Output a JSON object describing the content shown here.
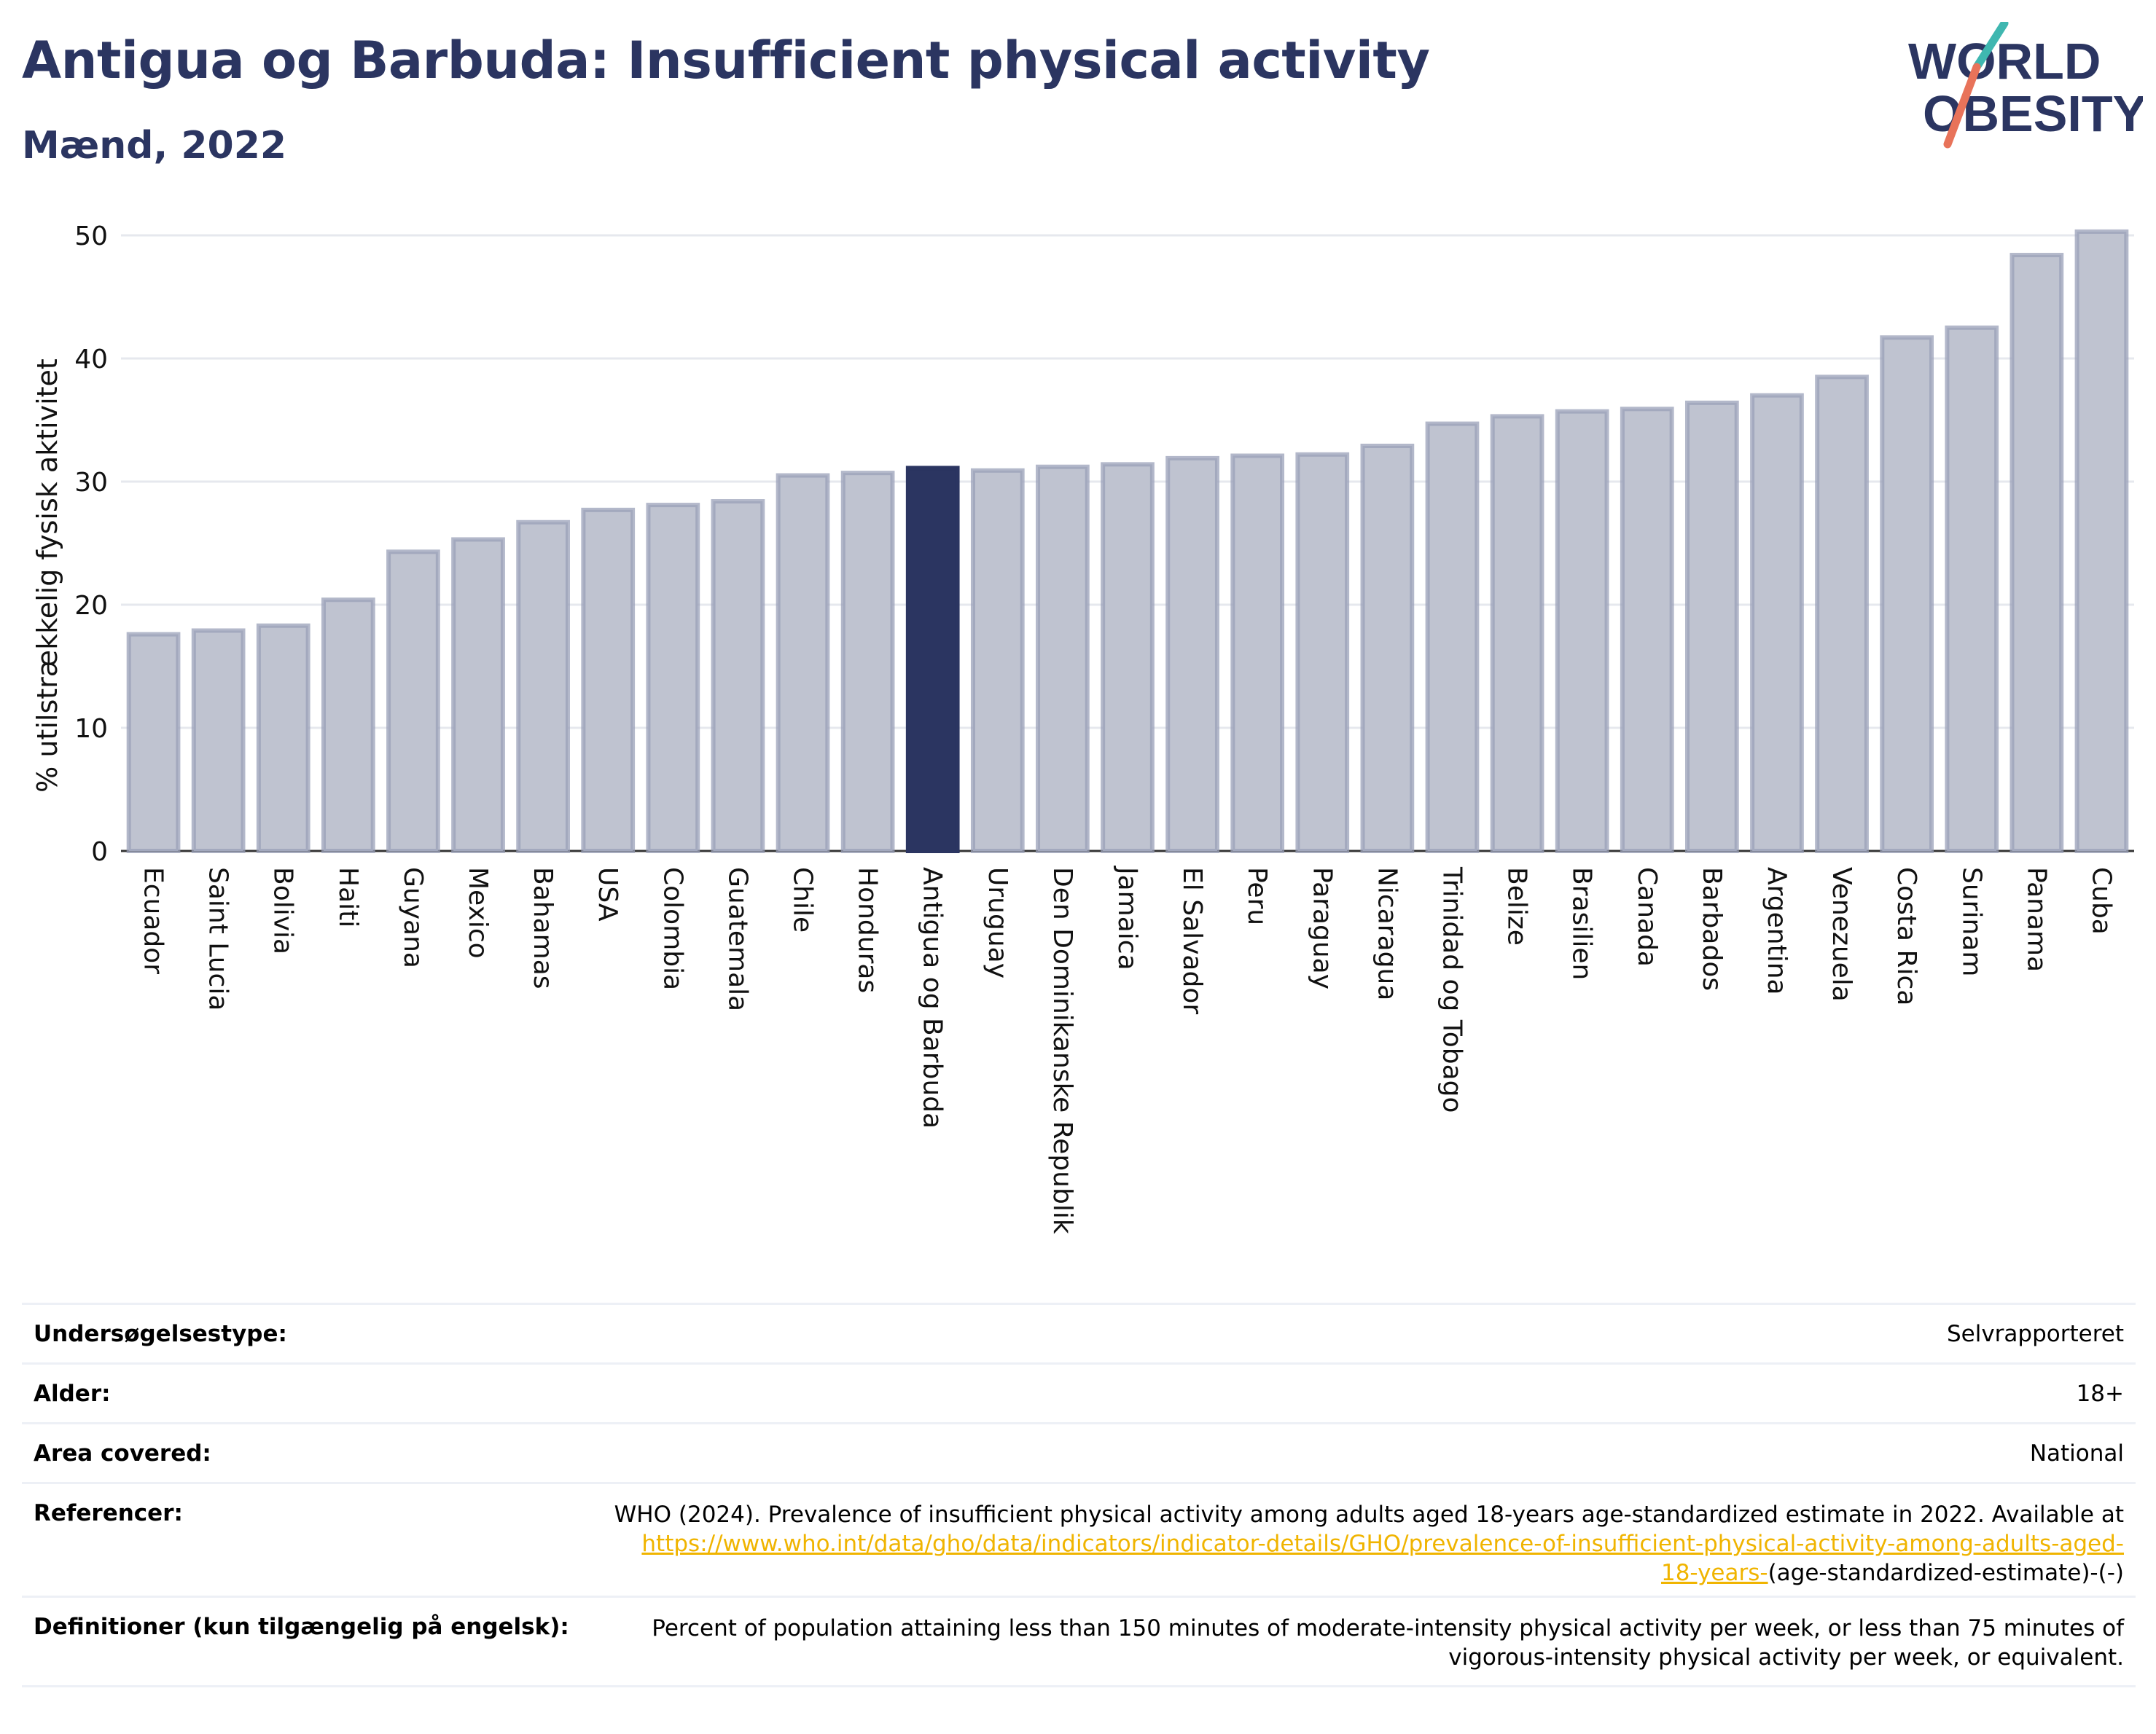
{
  "header": {
    "title": "Antigua og Barbuda: Insufficient physical activity",
    "subtitle": "Mænd, 2022"
  },
  "logo": {
    "line1": "WORLD",
    "line2": "OBESITY",
    "colors": {
      "text": "#2b3561",
      "slash_top": "#3fb7b0",
      "slash_bottom": "#e8735a"
    }
  },
  "chart_data": {
    "type": "bar",
    "ylabel": "% utilstrækkelig fysisk aktivitet",
    "ylim": [
      0,
      50
    ],
    "yticks": [
      0,
      10,
      20,
      30,
      40,
      50
    ],
    "grid": true,
    "highlight": "Antigua og Barbuda",
    "colors": {
      "bar": "#bfc3d0",
      "bar_edge": "#9aa0b8",
      "highlight": "#2b3561",
      "grid": "#e6e8ee"
    },
    "categories": [
      "Ecuador",
      "Saint Lucia",
      "Bolivia",
      "Haiti",
      "Guyana",
      "Mexico",
      "Bahamas",
      "USA",
      "Colombia",
      "Guatemala",
      "Chile",
      "Honduras",
      "Antigua og Barbuda",
      "Uruguay",
      "Den Dominikanske Republik",
      "Jamaica",
      "El Salvador",
      "Peru",
      "Paraguay",
      "Nicaragua",
      "Trinidad og Tobago",
      "Belize",
      "Brasilien",
      "Canada",
      "Barbados",
      "Argentina",
      "Venezuela",
      "Costa Rica",
      "Surinam",
      "Panama",
      "Cuba"
    ],
    "values": [
      17.6,
      17.9,
      18.3,
      20.4,
      24.3,
      25.3,
      26.7,
      27.7,
      28.1,
      28.4,
      30.5,
      30.7,
      31.1,
      30.9,
      31.2,
      31.4,
      31.9,
      32.1,
      32.2,
      32.9,
      34.7,
      35.3,
      35.7,
      35.9,
      36.4,
      37.0,
      38.5,
      41.7,
      42.5,
      48.4,
      50.3
    ]
  },
  "info": {
    "survey_type": {
      "label": "Undersøgelsestype:",
      "value": "Selvrapporteret"
    },
    "age": {
      "label": "Alder:",
      "value": "18+"
    },
    "area": {
      "label": "Area covered:",
      "value": "National"
    },
    "references": {
      "label": "Referencer:",
      "text": "WHO (2024). Prevalence of insufficient physical activity among adults aged 18-years age-standardized estimate in 2022. Available at",
      "link_part1": "https://www.who.int/data/gho/data/indicators/indicator-details/GHO/prevalence-of-insufficient-physical-activity-among-adults-aged-",
      "link_part2": "18-years-",
      "suffix": "(age-standardized-estimate)-(-)"
    },
    "definitions": {
      "label": "Definitioner (kun tilgængelig på engelsk):",
      "line1": "Percent of population attaining less than 150 minutes of moderate-intensity physical activity per week, or less than 75 minutes of",
      "line2": "vigorous-intensity physical activity per week, or equivalent."
    }
  }
}
